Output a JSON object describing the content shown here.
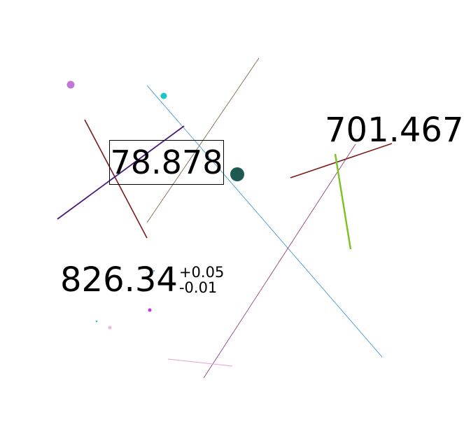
{
  "labels": {
    "boxed_value": "78.878",
    "corner_value": "701.467",
    "tolerance_value": {
      "main": "826.34",
      "upper": "+0.05",
      "lower": "-0.01"
    }
  },
  "colors": {
    "background": "#ffffff",
    "text": "#000000",
    "lines": [
      "#7a5a3a",
      "#2f8fd6",
      "#7a1c1c",
      "#4a1a7a",
      "#7a1c1c",
      "#8a2a6a",
      "#7cc21c",
      "#e6a2cc"
    ],
    "dots": [
      "#c07ad6",
      "#1cc6c6",
      "#1f5a52",
      "#c03ad6",
      "#e8b8e8",
      "#30c0c0"
    ]
  }
}
